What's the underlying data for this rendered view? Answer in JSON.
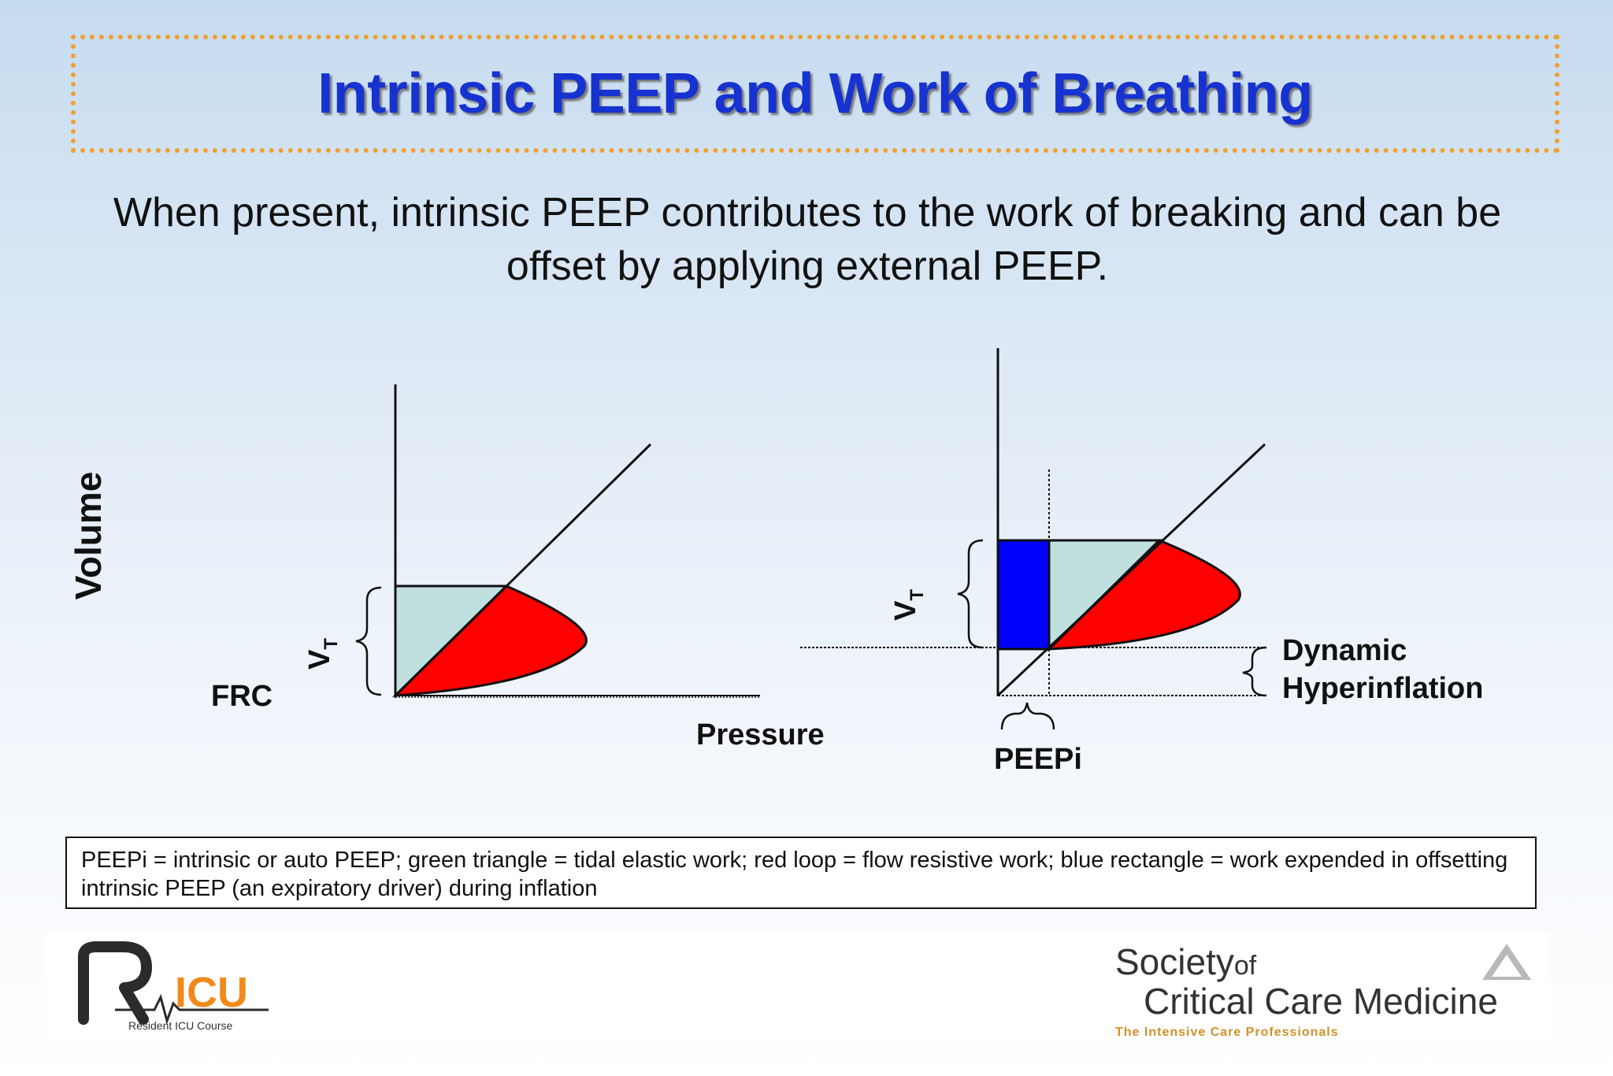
{
  "title": "Intrinsic PEEP and Work of Breathing",
  "subtitle": "When present, intrinsic PEEP contributes to the work of breaking and can be offset by applying external PEEP.",
  "diagram": {
    "y_axis_label": "Volume",
    "x_axis_label": "Pressure",
    "frc_label": "FRC",
    "vt_label": "V",
    "vt_subscript": "T",
    "peepi_label": "PEEPi",
    "dynamic_label_1": "Dynamic",
    "dynamic_label_2": "Hyperinflation",
    "colors": {
      "green_triangle": "#bfe0df",
      "red_loop": "#ff0000",
      "blue_rectangle": "#0000ff"
    }
  },
  "legend": "PEEPi = intrinsic or auto PEEP; green triangle = tidal elastic work; red loop = flow resistive work; blue rectangle = work expended in offsetting intrinsic PEEP (an expiratory driver) during inflation",
  "footer": {
    "ricu_subtitle": "Resident ICU Course",
    "sccm_society": "Society",
    "sccm_of": "of",
    "sccm_name": "Critical Care Medicine",
    "sccm_tagline": "The Intensive Care Professionals"
  }
}
